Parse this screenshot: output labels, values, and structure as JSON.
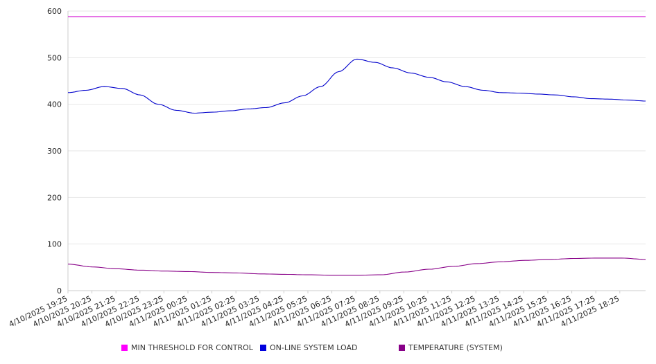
{
  "chart_data": {
    "type": "line",
    "title": "",
    "xlabel": "",
    "ylabel": "",
    "ylim": [
      0,
      600
    ],
    "y_ticks": [
      "0",
      "100",
      "200",
      "300",
      "400",
      "500",
      "600"
    ],
    "x_tick_labels": [
      "4/10/2025 19:25",
      "4/10/2025 20:25",
      "4/10/2025 21:25",
      "4/10/2025 22:25",
      "4/10/2025 23:25",
      "4/11/2025 00:25",
      "4/11/2025 01:25",
      "4/11/2025 02:25",
      "4/11/2025 03:25",
      "4/11/2025 04:25",
      "4/11/2025 05:25",
      "4/11/2025 06:25",
      "4/11/2025 07:25",
      "4/11/2025 08:25",
      "4/11/2025 09:25",
      "4/11/2025 10:25",
      "4/11/2025 11:25",
      "4/11/2025 12:25",
      "4/11/2025 13:25",
      "4/11/2025 14:25",
      "4/11/2025 15:25",
      "4/11/2025 16:25",
      "4/11/2025 17:25",
      "4/11/2025 18:25"
    ],
    "grid": true,
    "legend_position": "bottom",
    "series": [
      {
        "name": "MIN THRESHOLD FOR CONTROL",
        "color": "#d000d0",
        "values": [
          588,
          588,
          588,
          588,
          588,
          588,
          588,
          588,
          588,
          588,
          588,
          588,
          588,
          588,
          588,
          588,
          588,
          588,
          588,
          588,
          588,
          588,
          588,
          588,
          588
        ]
      },
      {
        "name": "ON-LINE SYSTEM LOAD",
        "color": "#0000cc",
        "values": [
          425,
          430,
          438,
          434,
          420,
          400,
          387,
          381,
          383,
          386,
          390,
          393,
          403,
          418,
          438,
          470,
          497,
          490,
          478,
          467,
          458,
          448,
          438,
          430,
          425
        ]
      },
      {
        "name": "TEMPERATURE (SYSTEM)",
        "color": "#880088",
        "values": [
          57,
          51,
          47,
          44,
          42,
          41,
          39,
          38,
          36,
          35,
          34,
          33,
          33,
          34,
          40,
          46,
          52,
          58,
          62,
          65,
          67,
          69,
          70,
          70,
          67
        ]
      }
    ],
    "series_extra": {
      "ON-LINE SYSTEM LOAD_tail": [
        424,
        422,
        420,
        416,
        412,
        411,
        409,
        407
      ]
    }
  }
}
